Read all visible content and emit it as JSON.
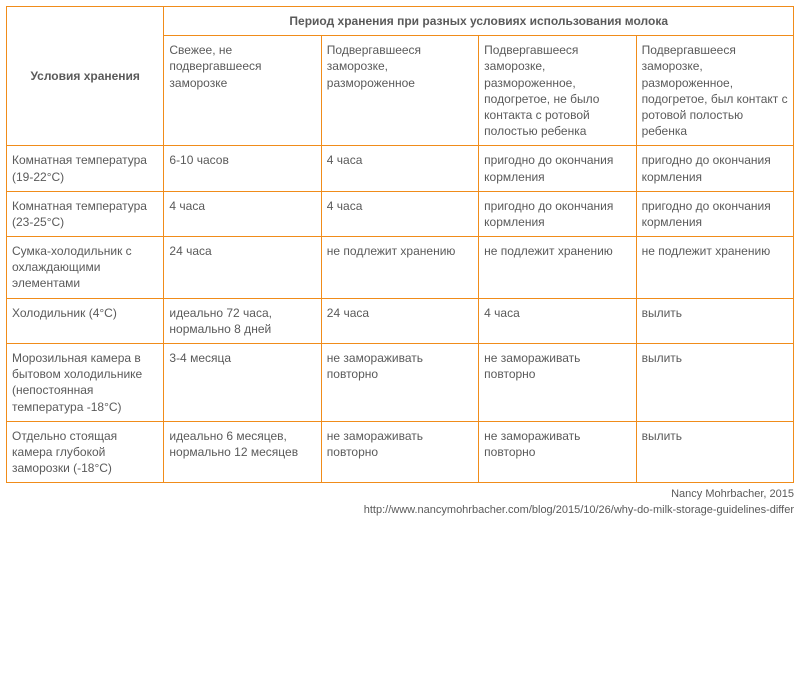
{
  "table": {
    "type": "table",
    "border_color": "#f08c1a",
    "text_color": "#5a5a5a",
    "background_color": "#ffffff",
    "font_size_pt": 9,
    "header": {
      "storage_conditions": "Условия хранения",
      "period_title": "Период хранения при разных условиях использования молока",
      "subheaders": {
        "h1": "Свежее, не подвергавшееся заморозке",
        "h2": "Подвергавшееся заморозке, размороженное",
        "h3": "Подвергавшееся заморозке, размороженное, подогретое, не было контакта с ротовой полостью ребенка",
        "h4": "Подвергавшееся заморозке, размороженное, подогретое, был контакт с ротовой полостью ребенка"
      }
    },
    "rows": [
      {
        "cond": "Комнатная температура (19-22°C)",
        "c1": "6-10 часов",
        "c2": "4 часа",
        "c3": "пригодно до окончания кормления",
        "c4": "пригодно до окончания кормления"
      },
      {
        "cond": "Комнатная температура (23-25°C)",
        "c1": "4 часа",
        "c2": "4 часа",
        "c3": "пригодно до окончания кормления",
        "c4": "пригодно до окончания кормления"
      },
      {
        "cond": "Сумка-холодильник с охлаждающими элементами",
        "c1": "24 часа",
        "c2": "не подлежит хранению",
        "c3": "не подлежит хранению",
        "c4": "не подлежит хранению"
      },
      {
        "cond": "Холодильник (4°C)",
        "c1": "идеально 72 часа, нормально 8 дней",
        "c2": "24 часа",
        "c3": "4 часа",
        "c4": "вылить"
      },
      {
        "cond": "Морозильная камера в бытовом холодильнике (непостоянная температура -18°C)",
        "c1": "3-4 месяца",
        "c2": "не замораживать повторно",
        "c3": "не замораживать повторно",
        "c4": "вылить"
      },
      {
        "cond": "Отдельно стоящая камера глубокой заморозки (-18°C)",
        "c1": "идеально 6 месяцев, нормально 12 месяцев",
        "c2": "не замораживать повторно",
        "c3": "не замораживать повторно",
        "c4": "вылить"
      }
    ]
  },
  "credits": {
    "author": "Nancy Mohrbacher, 2015",
    "url": "http://www.nancymohrbacher.com/blog/2015/10/26/why-do-milk-storage-guidelines-differ"
  }
}
